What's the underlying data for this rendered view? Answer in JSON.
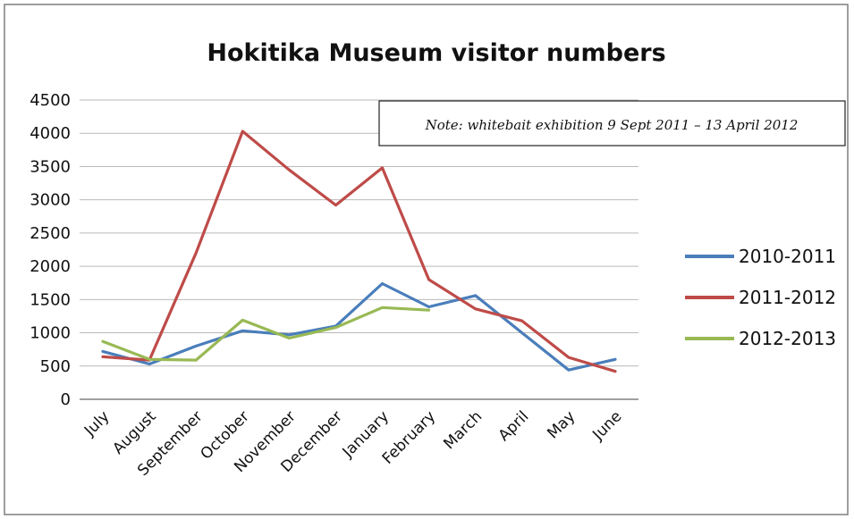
{
  "chart_data": {
    "type": "line",
    "title": "Hokitika Museum visitor numbers",
    "xlabel": "",
    "ylabel": "",
    "categories": [
      "July",
      "August",
      "September",
      "October",
      "November",
      "December",
      "January",
      "February",
      "March",
      "April",
      "May",
      "June"
    ],
    "ylim": [
      0,
      4500
    ],
    "yticks": [
      0,
      500,
      1000,
      1500,
      2000,
      2500,
      3000,
      3500,
      4000,
      4500
    ],
    "grid": true,
    "legend_position": "right",
    "series": [
      {
        "name": "2010-2011",
        "color": "#4a7ebb",
        "values": [
          720,
          530,
          800,
          1030,
          970,
          1100,
          1740,
          1390,
          1560,
          1000,
          440,
          600
        ]
      },
      {
        "name": "2011-2012",
        "color": "#be4b48",
        "values": [
          640,
          590,
          2200,
          4030,
          3450,
          2920,
          3480,
          1800,
          1360,
          1180,
          630,
          420
        ]
      },
      {
        "name": "2012-2013",
        "color": "#98b954",
        "values": [
          870,
          600,
          590,
          1190,
          920,
          1080,
          1380,
          1340,
          null,
          null,
          null,
          null
        ]
      }
    ],
    "annotation": "Note: whitebait exhibition 9 Sept 2011 – 13 April 2012"
  }
}
